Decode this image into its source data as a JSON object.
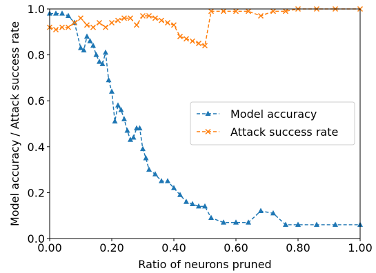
{
  "chart_data": {
    "type": "line",
    "xlabel": "Ratio of neurons pruned",
    "ylabel": "Model accuracy / Attack success rate",
    "xlim": [
      0,
      1
    ],
    "ylim": [
      0,
      1
    ],
    "xticks": [
      "0.00",
      "0.20",
      "0.40",
      "0.60",
      "0.80",
      "1.00"
    ],
    "xtick_values": [
      0,
      0.2,
      0.4,
      0.6,
      0.8,
      1.0
    ],
    "yticks": [
      "0.0",
      "0.2",
      "0.4",
      "0.6",
      "0.8",
      "1.0"
    ],
    "ytick_values": [
      0,
      0.2,
      0.4,
      0.6,
      0.8,
      1.0
    ],
    "grid": false,
    "legend_position": "center-right",
    "line_style": "dashed",
    "series": [
      {
        "name": "Model accuracy",
        "color": "#1f77b4",
        "marker": "triangle",
        "x": [
          0.0,
          0.02,
          0.04,
          0.06,
          0.08,
          0.1,
          0.11,
          0.12,
          0.13,
          0.14,
          0.15,
          0.16,
          0.17,
          0.18,
          0.19,
          0.2,
          0.21,
          0.22,
          0.23,
          0.24,
          0.25,
          0.26,
          0.27,
          0.28,
          0.29,
          0.3,
          0.31,
          0.32,
          0.34,
          0.36,
          0.38,
          0.4,
          0.42,
          0.44,
          0.46,
          0.48,
          0.5,
          0.52,
          0.56,
          0.6,
          0.64,
          0.68,
          0.72,
          0.76,
          0.8,
          0.86,
          0.92,
          1.0
        ],
        "y": [
          0.98,
          0.98,
          0.98,
          0.97,
          0.94,
          0.83,
          0.82,
          0.88,
          0.86,
          0.84,
          0.8,
          0.77,
          0.76,
          0.81,
          0.69,
          0.64,
          0.51,
          0.58,
          0.56,
          0.52,
          0.47,
          0.43,
          0.44,
          0.48,
          0.48,
          0.39,
          0.35,
          0.3,
          0.28,
          0.25,
          0.25,
          0.22,
          0.19,
          0.16,
          0.15,
          0.14,
          0.14,
          0.09,
          0.07,
          0.07,
          0.07,
          0.12,
          0.11,
          0.06,
          0.06,
          0.06,
          0.06,
          0.06
        ]
      },
      {
        "name": "Attack success rate",
        "color": "#ff7f0e",
        "marker": "x",
        "x": [
          0.0,
          0.02,
          0.04,
          0.06,
          0.08,
          0.1,
          0.12,
          0.14,
          0.16,
          0.18,
          0.2,
          0.22,
          0.24,
          0.26,
          0.28,
          0.3,
          0.32,
          0.34,
          0.36,
          0.38,
          0.4,
          0.42,
          0.44,
          0.46,
          0.48,
          0.5,
          0.52,
          0.56,
          0.6,
          0.64,
          0.68,
          0.72,
          0.76,
          0.8,
          0.86,
          0.92,
          1.0
        ],
        "y": [
          0.92,
          0.91,
          0.92,
          0.92,
          0.94,
          0.96,
          0.93,
          0.92,
          0.94,
          0.92,
          0.94,
          0.95,
          0.96,
          0.96,
          0.93,
          0.97,
          0.97,
          0.96,
          0.95,
          0.94,
          0.93,
          0.88,
          0.87,
          0.86,
          0.85,
          0.84,
          0.99,
          0.99,
          0.99,
          0.99,
          0.97,
          0.99,
          0.99,
          1.0,
          1.0,
          1.0,
          1.0
        ]
      }
    ]
  }
}
